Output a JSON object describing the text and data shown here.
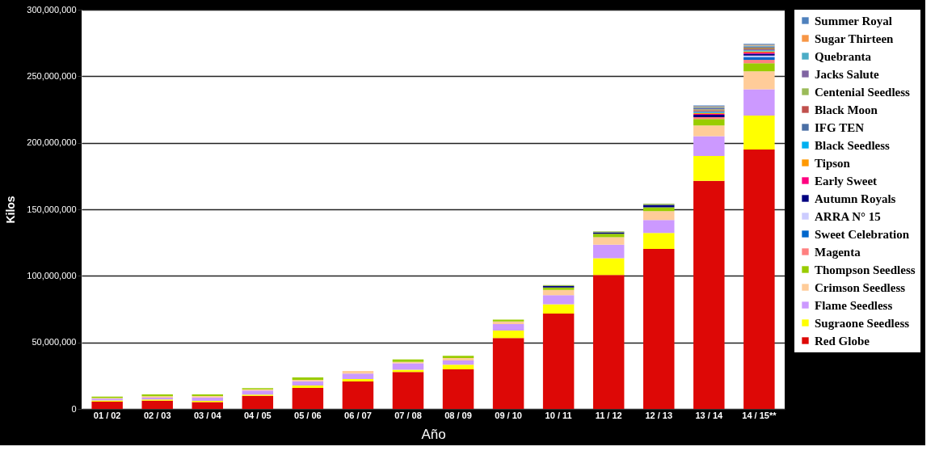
{
  "chart_data": {
    "type": "bar",
    "stacked": true,
    "xlabel": "Año",
    "ylabel": "Kilos",
    "categories": [
      "01 / 02",
      "02 / 03",
      "03 / 04",
      "04 / 05",
      "05 / 06",
      "06 / 07",
      "07 / 08",
      "08 / 09",
      "09 / 10",
      "10 / 11",
      "11 / 12",
      "12 / 13",
      "13 / 14",
      "14 / 15**"
    ],
    "ylim": [
      0,
      300000000
    ],
    "yticks": [
      0,
      {
        "value": 50000000,
        "label": "50,000,000"
      },
      {
        "value": 100000000,
        "label": "100,000,000"
      },
      {
        "value": 150000000,
        "label": "150,000,000"
      },
      {
        "value": 200000000,
        "label": "200,000,000"
      },
      {
        "value": 250000000,
        "label": "250,000,000"
      },
      {
        "value": 300000000,
        "label": "300,000,000"
      }
    ],
    "grid": "y",
    "legend": "right",
    "series": [
      {
        "name": "Red Globe",
        "color": "#dd0806",
        "values": [
          5400000,
          6300000,
          5100000,
          9900000,
          15800000,
          20700000,
          27800000,
          29700000,
          53300000,
          71700000,
          100700000,
          120300000,
          171400000,
          195000000
        ]
      },
      {
        "name": "Sugraone Seedless",
        "color": "#ffff00",
        "values": [
          1000000,
          900000,
          900000,
          900000,
          1800000,
          1800000,
          1600000,
          3600000,
          5600000,
          7000000,
          12600000,
          11900000,
          18700000,
          25400000
        ]
      },
      {
        "name": "Flame Seedless",
        "color": "#cc99ff",
        "values": [
          1300000,
          1300000,
          2700000,
          3000000,
          3200000,
          4000000,
          4900000,
          3200000,
          4900000,
          6700000,
          10100000,
          9700000,
          14800000,
          19800000
        ]
      },
      {
        "name": "Crimson Seedless",
        "color": "#ffcc99",
        "values": [
          500000,
          1000000,
          1000000,
          900000,
          1100000,
          2000000,
          1100000,
          1800000,
          2000000,
          4000000,
          5600000,
          6700000,
          8100000,
          13500000
        ]
      },
      {
        "name": "Thompson Seedless",
        "color": "#99cc00",
        "values": [
          1000000,
          1500000,
          1300000,
          900000,
          1800000,
          null,
          1800000,
          1600000,
          1300000,
          1800000,
          2700000,
          2900000,
          4900000,
          6100000
        ]
      },
      {
        "name": "Magenta",
        "color": "#ff8080",
        "values": [
          null,
          null,
          null,
          null,
          null,
          null,
          null,
          null,
          null,
          null,
          null,
          null,
          1300000,
          2500000
        ]
      },
      {
        "name": "Sweet Celebration",
        "color": "#0066cc",
        "values": [
          null,
          null,
          null,
          null,
          null,
          null,
          null,
          null,
          null,
          null,
          null,
          null,
          null,
          2200000
        ]
      },
      {
        "name": "ARRA N° 15",
        "color": "#ccccff",
        "values": [
          null,
          null,
          null,
          null,
          null,
          null,
          null,
          null,
          null,
          null,
          null,
          null,
          null,
          1100000
        ]
      },
      {
        "name": "Autumn Royals",
        "color": "#000080",
        "values": [
          null,
          null,
          null,
          null,
          null,
          null,
          null,
          null,
          null,
          1100000,
          1000000,
          1800000,
          1800000,
          1300000
        ]
      },
      {
        "name": "Early Sweet",
        "color": "#ff0080",
        "values": [
          null,
          null,
          null,
          null,
          null,
          null,
          null,
          null,
          null,
          null,
          null,
          null,
          700000,
          900000
        ]
      },
      {
        "name": "Tipson",
        "color": "#ff9900",
        "values": [
          null,
          null,
          null,
          null,
          null,
          null,
          null,
          null,
          null,
          null,
          null,
          null,
          700000,
          900000
        ]
      },
      {
        "name": "Black Seedless",
        "color": "#00b0f0",
        "values": [
          null,
          null,
          null,
          null,
          null,
          null,
          null,
          null,
          null,
          null,
          null,
          null,
          700000,
          700000
        ]
      },
      {
        "name": "IFG TEN",
        "color": "#4a6fa5",
        "values": [
          null,
          null,
          null,
          null,
          null,
          null,
          null,
          null,
          null,
          null,
          null,
          null,
          700000,
          700000
        ]
      },
      {
        "name": "Black Moon",
        "color": "#c0504d",
        "values": [
          null,
          null,
          null,
          null,
          null,
          null,
          null,
          null,
          null,
          null,
          null,
          null,
          700000,
          700000
        ]
      },
      {
        "name": "Centenial Seedless",
        "color": "#9bbb59",
        "values": [
          null,
          null,
          null,
          null,
          null,
          null,
          null,
          null,
          null,
          700000,
          700000,
          900000,
          700000,
          700000
        ]
      },
      {
        "name": "Jacks Salute",
        "color": "#8064a2",
        "values": [
          null,
          null,
          null,
          null,
          null,
          null,
          null,
          null,
          null,
          null,
          null,
          null,
          700000,
          700000
        ]
      },
      {
        "name": "Quebranta",
        "color": "#4bacc6",
        "values": [
          null,
          null,
          null,
          null,
          null,
          null,
          null,
          null,
          null,
          null,
          null,
          null,
          700000,
          700000
        ]
      },
      {
        "name": "Sugar Thirteen",
        "color": "#f79646",
        "values": [
          null,
          null,
          null,
          null,
          null,
          null,
          null,
          null,
          null,
          null,
          null,
          null,
          700000,
          700000
        ]
      },
      {
        "name": "Summer Royal",
        "color": "#4f81bd",
        "values": [
          null,
          null,
          null,
          null,
          null,
          null,
          null,
          null,
          null,
          null,
          null,
          null,
          700000,
          700000
        ]
      }
    ]
  }
}
